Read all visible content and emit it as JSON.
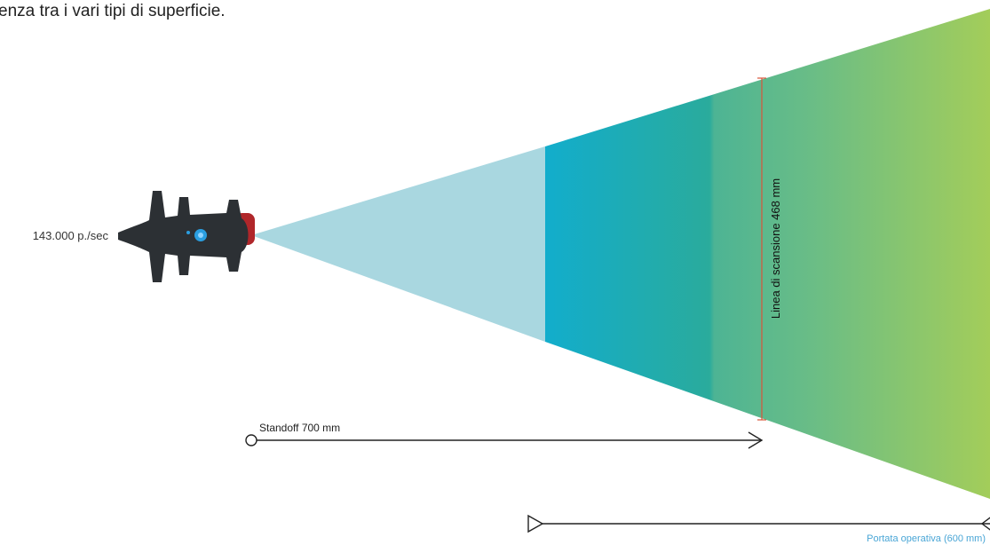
{
  "intro_text": "enza tra i vari tipi di superficie.",
  "scanner": {
    "rate_label": "143.000 p./sec"
  },
  "scan_line": {
    "label": "Linea di scansione 468 mm"
  },
  "standoff": {
    "label": "Standoff 700 mm"
  },
  "operating_range": {
    "label": "Portata operativa (600 mm)"
  }
}
